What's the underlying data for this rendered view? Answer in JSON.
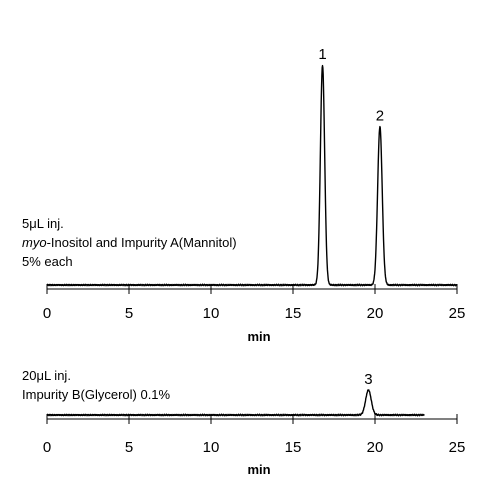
{
  "chart_data": [
    {
      "type": "line",
      "xlabel": "min",
      "xlim": [
        0,
        25
      ],
      "xticks": [
        0,
        5,
        10,
        15,
        20,
        25
      ],
      "annotation": [
        "5μL inj.",
        "myo-Inositol and Impurity A(Mannitol)",
        "5% each"
      ],
      "trace": {
        "start": 0,
        "end": 25,
        "baseline": 0
      },
      "peaks": [
        {
          "label": "1",
          "x": 16.8,
          "height": 1.0,
          "width": 0.13
        },
        {
          "label": "2",
          "x": 20.3,
          "height": 0.72,
          "width": 0.14
        }
      ]
    },
    {
      "type": "line",
      "xlabel": "min",
      "xlim": [
        0,
        25
      ],
      "xticks": [
        0,
        5,
        10,
        15,
        20,
        25
      ],
      "annotation": [
        "20μL inj.",
        "Impurity B(Glycerol) 0.1%"
      ],
      "trace": {
        "start": 0,
        "end": 23,
        "baseline": 0
      },
      "peaks": [
        {
          "label": "3",
          "x": 19.6,
          "height": 1.0,
          "width": 0.17
        }
      ]
    }
  ]
}
